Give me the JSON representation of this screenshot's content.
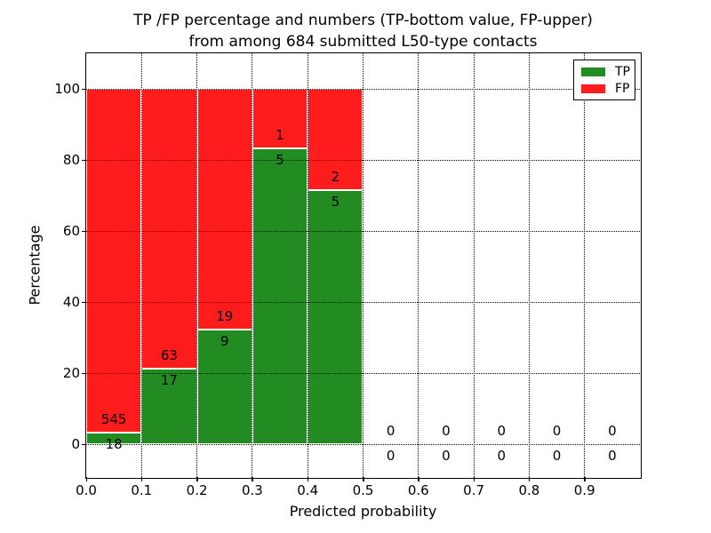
{
  "chart_data": {
    "type": "bar",
    "stacked": true,
    "title_line1": "TP /FP percentage and numbers (TP-bottom value, FP-upper)",
    "title_line2": "from among 684 submitted L50-type contacts",
    "xlabel": "Predicted probability",
    "ylabel": "Percentage",
    "x_ticks": [
      "0.0",
      "0.1",
      "0.2",
      "0.3",
      "0.4",
      "0.5",
      "0.6",
      "0.7",
      "0.8",
      "0.9"
    ],
    "y_ticks": [
      "0",
      "20",
      "40",
      "60",
      "80",
      "100"
    ],
    "xlim": [
      0.0,
      1.0
    ],
    "ylim": [
      -10,
      110
    ],
    "grid": "dotted",
    "annotation_rule": "FP count above TP/FP boundary, TP count below boundary",
    "legend": {
      "position": "upper right",
      "entries": [
        {
          "label": "TP",
          "color": "#228b22"
        },
        {
          "label": "FP",
          "color": "#ff1c1c"
        }
      ]
    },
    "colors": {
      "tp": "#228b22",
      "fp": "#ff1c1c",
      "bar_edge": "#ffffff"
    },
    "bins": [
      {
        "x_start": 0.0,
        "x_end": 0.1,
        "tp": 18,
        "fp": 545
      },
      {
        "x_start": 0.1,
        "x_end": 0.2,
        "tp": 17,
        "fp": 63
      },
      {
        "x_start": 0.2,
        "x_end": 0.3,
        "tp": 9,
        "fp": 19
      },
      {
        "x_start": 0.3,
        "x_end": 0.4,
        "tp": 5,
        "fp": 1
      },
      {
        "x_start": 0.4,
        "x_end": 0.5,
        "tp": 5,
        "fp": 2
      },
      {
        "x_start": 0.5,
        "x_end": 0.6,
        "tp": 0,
        "fp": 0
      },
      {
        "x_start": 0.6,
        "x_end": 0.7,
        "tp": 0,
        "fp": 0
      },
      {
        "x_start": 0.7,
        "x_end": 0.8,
        "tp": 0,
        "fp": 0
      },
      {
        "x_start": 0.8,
        "x_end": 0.9,
        "tp": 0,
        "fp": 0
      },
      {
        "x_start": 0.9,
        "x_end": 1.0,
        "tp": 0,
        "fp": 0
      }
    ]
  }
}
